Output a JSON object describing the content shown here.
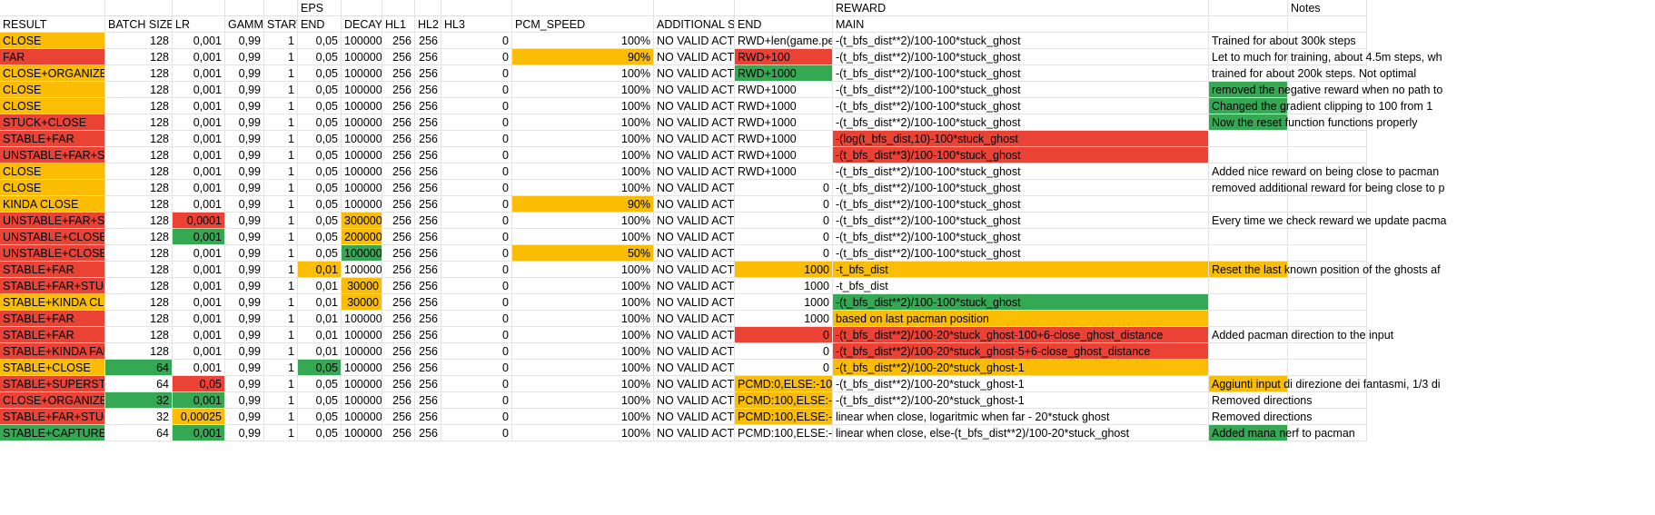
{
  "colors": {
    "o": "#fbbc04",
    "r": "#ea4335",
    "g": "#34a853",
    "grid": "#e2e3e3"
  },
  "group_headers": [
    {
      "col": 5,
      "text": "EPS"
    },
    {
      "col": 13,
      "text": "REWARD"
    },
    {
      "col": 15,
      "text": "Notes"
    }
  ],
  "headers": [
    "RESULT",
    "BATCH SIZE",
    "LR",
    "GAMMA",
    "START",
    "END",
    "DECAY",
    "HL1",
    "HL2",
    "HL3",
    "PCM_SPEED",
    "ADDITIONAL SE",
    "END",
    "MAIN"
  ],
  "rows": [
    {
      "c": [
        [
          "CLOSE",
          "o"
        ],
        [
          "128"
        ],
        [
          "0,001"
        ],
        [
          "0,99"
        ],
        [
          "1"
        ],
        [
          "0,05"
        ],
        [
          "100000"
        ],
        [
          "256"
        ],
        [
          "256"
        ],
        [
          "0"
        ],
        [
          "100%"
        ],
        [
          "NO VALID ACTI"
        ],
        [
          "RWD+len(game.pell"
        ],
        [
          "-(t_bfs_dist**2)/100-100*stuck_ghost"
        ]
      ],
      "note": [
        "Trained for about 300k steps"
      ]
    },
    {
      "c": [
        [
          "FAR",
          "r"
        ],
        [
          "128"
        ],
        [
          "0,001"
        ],
        [
          "0,99"
        ],
        [
          "1"
        ],
        [
          "0,05"
        ],
        [
          "100000"
        ],
        [
          "256"
        ],
        [
          "256"
        ],
        [
          "0"
        ],
        [
          "90%",
          "o"
        ],
        [
          "NO VALID ACTI"
        ],
        [
          "RWD+100",
          "r"
        ],
        [
          "-(t_bfs_dist**2)/100-100*stuck_ghost"
        ]
      ],
      "note": [
        "Let to much for training, about 4.5m steps, wh"
      ]
    },
    {
      "c": [
        [
          "CLOSE+ORGANIZED",
          "o"
        ],
        [
          "128"
        ],
        [
          "0,001"
        ],
        [
          "0,99"
        ],
        [
          "1"
        ],
        [
          "0,05"
        ],
        [
          "100000"
        ],
        [
          "256"
        ],
        [
          "256"
        ],
        [
          "0"
        ],
        [
          "100%"
        ],
        [
          "NO VALID ACTI"
        ],
        [
          "RWD+1000",
          "g"
        ],
        [
          "-(t_bfs_dist**2)/100-100*stuck_ghost"
        ]
      ],
      "note": [
        "trained for about 200k steps. Not optimal"
      ]
    },
    {
      "c": [
        [
          "CLOSE",
          "o"
        ],
        [
          "128"
        ],
        [
          "0,001"
        ],
        [
          "0,99"
        ],
        [
          "1"
        ],
        [
          "0,05"
        ],
        [
          "100000"
        ],
        [
          "256"
        ],
        [
          "256"
        ],
        [
          "0"
        ],
        [
          "100%"
        ],
        [
          "NO VALID ACTI"
        ],
        [
          "RWD+1000"
        ],
        [
          "-(t_bfs_dist**2)/100-100*stuck_ghost"
        ]
      ],
      "note": [
        "removed the negative reward when no path to",
        "g"
      ]
    },
    {
      "c": [
        [
          "CLOSE",
          "o"
        ],
        [
          "128"
        ],
        [
          "0,001"
        ],
        [
          "0,99"
        ],
        [
          "1"
        ],
        [
          "0,05"
        ],
        [
          "100000"
        ],
        [
          "256"
        ],
        [
          "256"
        ],
        [
          "0"
        ],
        [
          "100%"
        ],
        [
          "NO VALID ACTI"
        ],
        [
          "RWD+1000"
        ],
        [
          "-(t_bfs_dist**2)/100-100*stuck_ghost"
        ]
      ],
      "note": [
        "Changed the gradient clipping to 100 from 1",
        "g"
      ]
    },
    {
      "c": [
        [
          "STUCK+CLOSE",
          "r"
        ],
        [
          "128"
        ],
        [
          "0,001"
        ],
        [
          "0,99"
        ],
        [
          "1"
        ],
        [
          "0,05"
        ],
        [
          "100000"
        ],
        [
          "256"
        ],
        [
          "256"
        ],
        [
          "0"
        ],
        [
          "100%"
        ],
        [
          "NO VALID ACTI"
        ],
        [
          "RWD+1000"
        ],
        [
          "-(t_bfs_dist**2)/100-100*stuck_ghost"
        ]
      ],
      "note": [
        "Now the reset function functions properly",
        "g"
      ]
    },
    {
      "c": [
        [
          "STABLE+FAR",
          "r"
        ],
        [
          "128"
        ],
        [
          "0,001"
        ],
        [
          "0,99"
        ],
        [
          "1"
        ],
        [
          "0,05"
        ],
        [
          "100000"
        ],
        [
          "256"
        ],
        [
          "256"
        ],
        [
          "0"
        ],
        [
          "100%"
        ],
        [
          "NO VALID ACTI"
        ],
        [
          "RWD+1000"
        ],
        [
          "-(log(t_bfs_dist,10)-100*stuck_ghost",
          "r"
        ]
      ],
      "note": [
        ""
      ]
    },
    {
      "c": [
        [
          "UNSTABLE+FAR+STU",
          "r"
        ],
        [
          "128"
        ],
        [
          "0,001"
        ],
        [
          "0,99"
        ],
        [
          "1"
        ],
        [
          "0,05"
        ],
        [
          "100000"
        ],
        [
          "256"
        ],
        [
          "256"
        ],
        [
          "0"
        ],
        [
          "100%"
        ],
        [
          "NO VALID ACTI"
        ],
        [
          "RWD+1000"
        ],
        [
          "-(t_bfs_dist**3)/100-100*stuck_ghost",
          "r"
        ]
      ],
      "note": [
        ""
      ]
    },
    {
      "c": [
        [
          "CLOSE",
          "o"
        ],
        [
          "128"
        ],
        [
          "0,001"
        ],
        [
          "0,99"
        ],
        [
          "1"
        ],
        [
          "0,05"
        ],
        [
          "100000"
        ],
        [
          "256"
        ],
        [
          "256"
        ],
        [
          "0"
        ],
        [
          "100%"
        ],
        [
          "NO VALID ACTI"
        ],
        [
          "RWD+1000"
        ],
        [
          "-(t_bfs_dist**2)/100-100*stuck_ghost"
        ]
      ],
      "note": [
        "Added nice reward on being close to pacman"
      ]
    },
    {
      "c": [
        [
          "CLOSE",
          "o"
        ],
        [
          "128"
        ],
        [
          "0,001"
        ],
        [
          "0,99"
        ],
        [
          "1"
        ],
        [
          "0,05"
        ],
        [
          "100000"
        ],
        [
          "256"
        ],
        [
          "256"
        ],
        [
          "0"
        ],
        [
          "100%"
        ],
        [
          "NO VALID ACTI"
        ],
        [
          "0"
        ],
        [
          "-(t_bfs_dist**2)/100-100*stuck_ghost"
        ]
      ],
      "note": [
        "removed additional reward for being close to p"
      ]
    },
    {
      "c": [
        [
          "KINDA CLOSE",
          "o"
        ],
        [
          "128"
        ],
        [
          "0,001"
        ],
        [
          "0,99"
        ],
        [
          "1"
        ],
        [
          "0,05"
        ],
        [
          "100000"
        ],
        [
          "256"
        ],
        [
          "256"
        ],
        [
          "0"
        ],
        [
          "90%",
          "o"
        ],
        [
          "NO VALID ACTI"
        ],
        [
          "0"
        ],
        [
          "-(t_bfs_dist**2)/100-100*stuck_ghost"
        ]
      ],
      "note": [
        ""
      ]
    },
    {
      "c": [
        [
          "UNSTABLE+FAR+STU",
          "r"
        ],
        [
          "128"
        ],
        [
          "0,0001",
          "r"
        ],
        [
          "0,99"
        ],
        [
          "1"
        ],
        [
          "0,05"
        ],
        [
          "300000",
          "o"
        ],
        [
          "256"
        ],
        [
          "256"
        ],
        [
          "0"
        ],
        [
          "100%"
        ],
        [
          "NO VALID ACTI"
        ],
        [
          "0"
        ],
        [
          "-(t_bfs_dist**2)/100-100*stuck_ghost"
        ]
      ],
      "note": [
        "Every time we check reward we update pacma"
      ]
    },
    {
      "c": [
        [
          "UNSTABLE+CLOSE",
          "r"
        ],
        [
          "128"
        ],
        [
          "0,001",
          "g"
        ],
        [
          "0,99"
        ],
        [
          "1"
        ],
        [
          "0,05"
        ],
        [
          "200000",
          "o"
        ],
        [
          "256"
        ],
        [
          "256"
        ],
        [
          "0"
        ],
        [
          "100%"
        ],
        [
          "NO VALID ACTI"
        ],
        [
          "0"
        ],
        [
          "-(t_bfs_dist**2)/100-100*stuck_ghost"
        ]
      ],
      "note": [
        ""
      ]
    },
    {
      "c": [
        [
          "UNSTABLE+CLOSE",
          "r"
        ],
        [
          "128"
        ],
        [
          "0,001"
        ],
        [
          "0,99"
        ],
        [
          "1"
        ],
        [
          "0,05"
        ],
        [
          "100000",
          "g"
        ],
        [
          "256"
        ],
        [
          "256"
        ],
        [
          "0"
        ],
        [
          "50%",
          "o"
        ],
        [
          "NO VALID ACTI"
        ],
        [
          "0"
        ],
        [
          "-(t_bfs_dist**2)/100-100*stuck_ghost"
        ]
      ],
      "note": [
        ""
      ]
    },
    {
      "c": [
        [
          "STABLE+FAR",
          "r"
        ],
        [
          "128"
        ],
        [
          "0,001"
        ],
        [
          "0,99"
        ],
        [
          "1"
        ],
        [
          "0,01",
          "o"
        ],
        [
          "100000"
        ],
        [
          "256"
        ],
        [
          "256"
        ],
        [
          "0"
        ],
        [
          "100%"
        ],
        [
          "NO VALID ACTI"
        ],
        [
          "1000",
          "o"
        ],
        [
          "-t_bfs_dist",
          "o"
        ]
      ],
      "note": [
        "Reset the last known position of the ghosts af",
        "o"
      ]
    },
    {
      "c": [
        [
          "STABLE+FAR+STUCK",
          "r"
        ],
        [
          "128"
        ],
        [
          "0,001"
        ],
        [
          "0,99"
        ],
        [
          "1"
        ],
        [
          "0,01"
        ],
        [
          "30000",
          "o"
        ],
        [
          "256"
        ],
        [
          "256"
        ],
        [
          "0"
        ],
        [
          "100%"
        ],
        [
          "NO VALID ACTI"
        ],
        [
          "1000"
        ],
        [
          "-t_bfs_dist"
        ]
      ],
      "note": [
        ""
      ]
    },
    {
      "c": [
        [
          "STABLE+KINDA CLOS",
          "o"
        ],
        [
          "128"
        ],
        [
          "0,001"
        ],
        [
          "0,99"
        ],
        [
          "1"
        ],
        [
          "0,01"
        ],
        [
          "30000",
          "o"
        ],
        [
          "256"
        ],
        [
          "256"
        ],
        [
          "0"
        ],
        [
          "100%"
        ],
        [
          "NO VALID ACTI"
        ],
        [
          "1000"
        ],
        [
          "-(t_bfs_dist**2)/100-100*stuck_ghost",
          "g"
        ]
      ],
      "note": [
        ""
      ]
    },
    {
      "c": [
        [
          "STABLE+FAR",
          "r"
        ],
        [
          "128"
        ],
        [
          "0,001"
        ],
        [
          "0,99"
        ],
        [
          "1"
        ],
        [
          "0,01"
        ],
        [
          "100000"
        ],
        [
          "256"
        ],
        [
          "256"
        ],
        [
          "0"
        ],
        [
          "100%"
        ],
        [
          "NO VALID ACTI"
        ],
        [
          "1000"
        ],
        [
          "based on last pacman position",
          "o"
        ]
      ],
      "note": [
        ""
      ]
    },
    {
      "c": [
        [
          "STABLE+FAR",
          "r"
        ],
        [
          "128"
        ],
        [
          "0,001"
        ],
        [
          "0,99"
        ],
        [
          "1"
        ],
        [
          "0,01"
        ],
        [
          "100000"
        ],
        [
          "256"
        ],
        [
          "256"
        ],
        [
          "0"
        ],
        [
          "100%"
        ],
        [
          "NO VALID ACTI"
        ],
        [
          "0",
          "r"
        ],
        [
          "-(t_bfs_dist**2)/100-20*stuck_ghost-100+6-close_ghost_distance",
          "r"
        ]
      ],
      "note": [
        "Added pacman direction to the input"
      ]
    },
    {
      "c": [
        [
          "STABLE+KINDA FAR",
          "r"
        ],
        [
          "128"
        ],
        [
          "0,001"
        ],
        [
          "0,99"
        ],
        [
          "1"
        ],
        [
          "0,01"
        ],
        [
          "100000"
        ],
        [
          "256"
        ],
        [
          "256"
        ],
        [
          "0"
        ],
        [
          "100%"
        ],
        [
          "NO VALID ACTI"
        ],
        [
          "0"
        ],
        [
          "-(t_bfs_dist**2)/100-20*stuck_ghost-5+6-close_ghost_distance",
          "r"
        ]
      ],
      "note": [
        ""
      ]
    },
    {
      "c": [
        [
          "STABLE+CLOSE",
          "o"
        ],
        [
          "64",
          "g"
        ],
        [
          "0,001"
        ],
        [
          "0,99"
        ],
        [
          "1"
        ],
        [
          "0,05",
          "g"
        ],
        [
          "100000"
        ],
        [
          "256"
        ],
        [
          "256"
        ],
        [
          "0"
        ],
        [
          "100%"
        ],
        [
          "NO VALID ACTI"
        ],
        [
          "0"
        ],
        [
          "-(t_bfs_dist**2)/100-20*stuck_ghost-1",
          "o"
        ]
      ],
      "note": [
        ""
      ]
    },
    {
      "c": [
        [
          "STABLE+SUPERSTU",
          "r"
        ],
        [
          "64"
        ],
        [
          "0,05",
          "r"
        ],
        [
          "0,99"
        ],
        [
          "1"
        ],
        [
          "0,05"
        ],
        [
          "100000"
        ],
        [
          "256"
        ],
        [
          "256"
        ],
        [
          "0"
        ],
        [
          "100%"
        ],
        [
          "NO VALID ACTI"
        ],
        [
          "PCMD:0,ELSE:-100",
          "o"
        ],
        [
          "-(t_bfs_dist**2)/100-20*stuck_ghost-1"
        ]
      ],
      "note": [
        "Aggiunti input di direzione dei fantasmi, 1/3 di",
        "o"
      ]
    },
    {
      "c": [
        [
          "CLOSE+ORGANIZED",
          "r"
        ],
        [
          "32",
          "g"
        ],
        [
          "0,001",
          "g"
        ],
        [
          "0,99"
        ],
        [
          "1"
        ],
        [
          "0,05"
        ],
        [
          "100000"
        ],
        [
          "256"
        ],
        [
          "256"
        ],
        [
          "0"
        ],
        [
          "100%"
        ],
        [
          "NO VALID ACTI"
        ],
        [
          "PCMD:100,ELSE:-1(",
          "o"
        ],
        [
          "-(t_bfs_dist**2)/100-20*stuck_ghost-1"
        ]
      ],
      "note": [
        "Removed directions"
      ]
    },
    {
      "c": [
        [
          "STABLE+FAR+STUCK",
          "r"
        ],
        [
          "32"
        ],
        [
          "0,00025",
          "o"
        ],
        [
          "0,99"
        ],
        [
          "1"
        ],
        [
          "0,05"
        ],
        [
          "100000"
        ],
        [
          "256"
        ],
        [
          "256"
        ],
        [
          "0"
        ],
        [
          "100%"
        ],
        [
          "NO VALID ACTI"
        ],
        [
          "PCMD:100,ELSE:-1(",
          "o"
        ],
        [
          "linear when close, logaritmic when far - 20*stuck ghost"
        ]
      ],
      "note": [
        "Removed directions"
      ]
    },
    {
      "c": [
        [
          "STABLE+CAPTURE",
          "g"
        ],
        [
          "64"
        ],
        [
          "0,001",
          "g"
        ],
        [
          "0,99"
        ],
        [
          "1"
        ],
        [
          "0,05"
        ],
        [
          "100000"
        ],
        [
          "256"
        ],
        [
          "256"
        ],
        [
          "0"
        ],
        [
          "100%"
        ],
        [
          "NO VALID ACTI"
        ],
        [
          "PCMD:100,ELSE:-1("
        ],
        [
          "linear when close, else-(t_bfs_dist**2)/100-20*stuck_ghost"
        ]
      ],
      "note": [
        "Added mana nerf to pacman",
        "g"
      ]
    }
  ]
}
